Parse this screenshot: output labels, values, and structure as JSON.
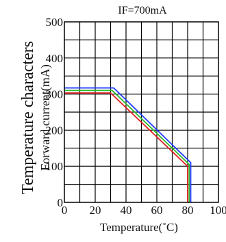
{
  "chart_data": {
    "type": "line",
    "title": "IF=700mA",
    "xlabel": "Temperature(˚C)",
    "ylabel": "Temperature characters",
    "ylabel_sub": "Forward current(mA)",
    "xlim": [
      0,
      100
    ],
    "ylim": [
      0,
      500
    ],
    "x_ticks": [
      0,
      20,
      40,
      60,
      80,
      100
    ],
    "y_ticks": [
      0,
      100,
      200,
      300,
      400,
      500
    ],
    "grid": true,
    "legend": "none",
    "series": [
      {
        "color": "#1f3bff",
        "x": [
          0,
          32,
          82,
          82
        ],
        "y": [
          317,
          317,
          110,
          0
        ]
      },
      {
        "color": "#2eb82e",
        "x": [
          0,
          31,
          81,
          81
        ],
        "y": [
          310,
          310,
          105,
          0
        ]
      },
      {
        "color": "#e02020",
        "x": [
          0,
          30,
          80,
          80
        ],
        "y": [
          303,
          303,
          100,
          0
        ]
      }
    ]
  }
}
